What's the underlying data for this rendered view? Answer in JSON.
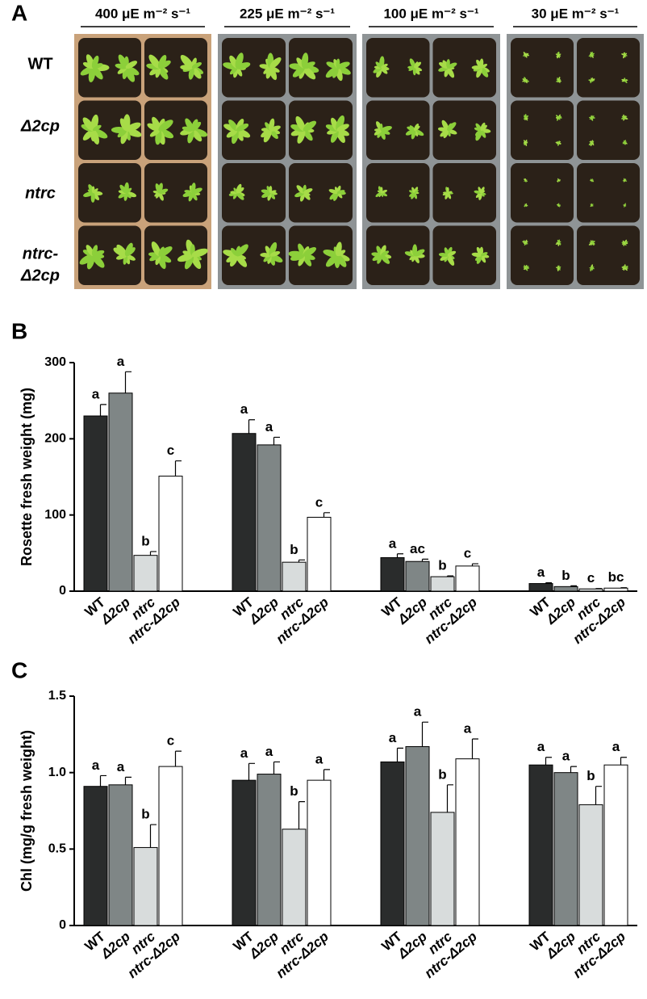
{
  "panel_a": {
    "label": "A",
    "columns": [
      "400 μE m⁻² s⁻¹",
      "225 μE m⁻² s⁻¹",
      "100 μE m⁻² s⁻¹",
      "30 μE m⁻² s⁻¹"
    ],
    "rows": [
      [
        "WT"
      ],
      [
        "Δ2cp"
      ],
      [
        "ntrc"
      ],
      [
        "ntrc-",
        "Δ2cp"
      ]
    ]
  },
  "chart_data": [
    {
      "type": "bar",
      "panel_label": "B",
      "ylabel": "Rosette fresh weight (mg)",
      "ylim": [
        0,
        300
      ],
      "yticks": [
        0,
        100,
        200,
        300
      ],
      "series": [
        {
          "name": "WT",
          "color": "#2a2c2c",
          "values": [
            230,
            207,
            44,
            10
          ],
          "errors": [
            15,
            18,
            5,
            1
          ],
          "annotations": [
            "a",
            "a",
            "a",
            "a"
          ]
        },
        {
          "name": "Δ2cp",
          "color": "#7f8686",
          "values": [
            260,
            192,
            39,
            6
          ],
          "errors": [
            28,
            10,
            3,
            1
          ],
          "annotations": [
            "a",
            "a",
            "ac",
            "b"
          ]
        },
        {
          "name": "ntrc",
          "color": "#d8dcdc",
          "values": [
            47,
            38,
            19,
            3
          ],
          "errors": [
            5,
            3,
            1,
            0.5
          ],
          "annotations": [
            "b",
            "b",
            "b",
            "c"
          ]
        },
        {
          "name": "ntrc-Δ2cp",
          "color": "#ffffff",
          "values": [
            151,
            97,
            33,
            4
          ],
          "errors": [
            20,
            6,
            3,
            0.5
          ],
          "annotations": [
            "c",
            "c",
            "c",
            "bc"
          ]
        }
      ]
    },
    {
      "type": "bar",
      "panel_label": "C",
      "ylabel": "Chl (mg/g fresh weight)",
      "ylim": [
        0,
        1.5
      ],
      "yticks": [
        0,
        0.5,
        {
          "value": 1,
          "label": "1.0"
        },
        1.5
      ],
      "series": [
        {
          "name": "WT",
          "color": "#2a2c2c",
          "values": [
            0.91,
            0.95,
            1.07,
            1.05
          ],
          "errors": [
            0.07,
            0.11,
            0.09,
            0.05
          ],
          "annotations": [
            "a",
            "a",
            "a",
            "a"
          ]
        },
        {
          "name": "Δ2cp",
          "color": "#7f8686",
          "values": [
            0.92,
            0.99,
            1.17,
            1.0
          ],
          "errors": [
            0.05,
            0.08,
            0.16,
            0.04
          ],
          "annotations": [
            "a",
            "a",
            "a",
            "a"
          ]
        },
        {
          "name": "ntrc",
          "color": "#d8dcdc",
          "values": [
            0.51,
            0.63,
            0.74,
            0.79
          ],
          "errors": [
            0.15,
            0.18,
            0.18,
            0.12
          ],
          "annotations": [
            "b",
            "b",
            "b",
            "b"
          ]
        },
        {
          "name": "ntrc-Δ2cp",
          "color": "#ffffff",
          "values": [
            1.04,
            0.95,
            1.09,
            1.05
          ],
          "errors": [
            0.1,
            0.07,
            0.13,
            0.05
          ],
          "annotations": [
            "c",
            "a",
            "a",
            "a"
          ]
        }
      ]
    }
  ]
}
